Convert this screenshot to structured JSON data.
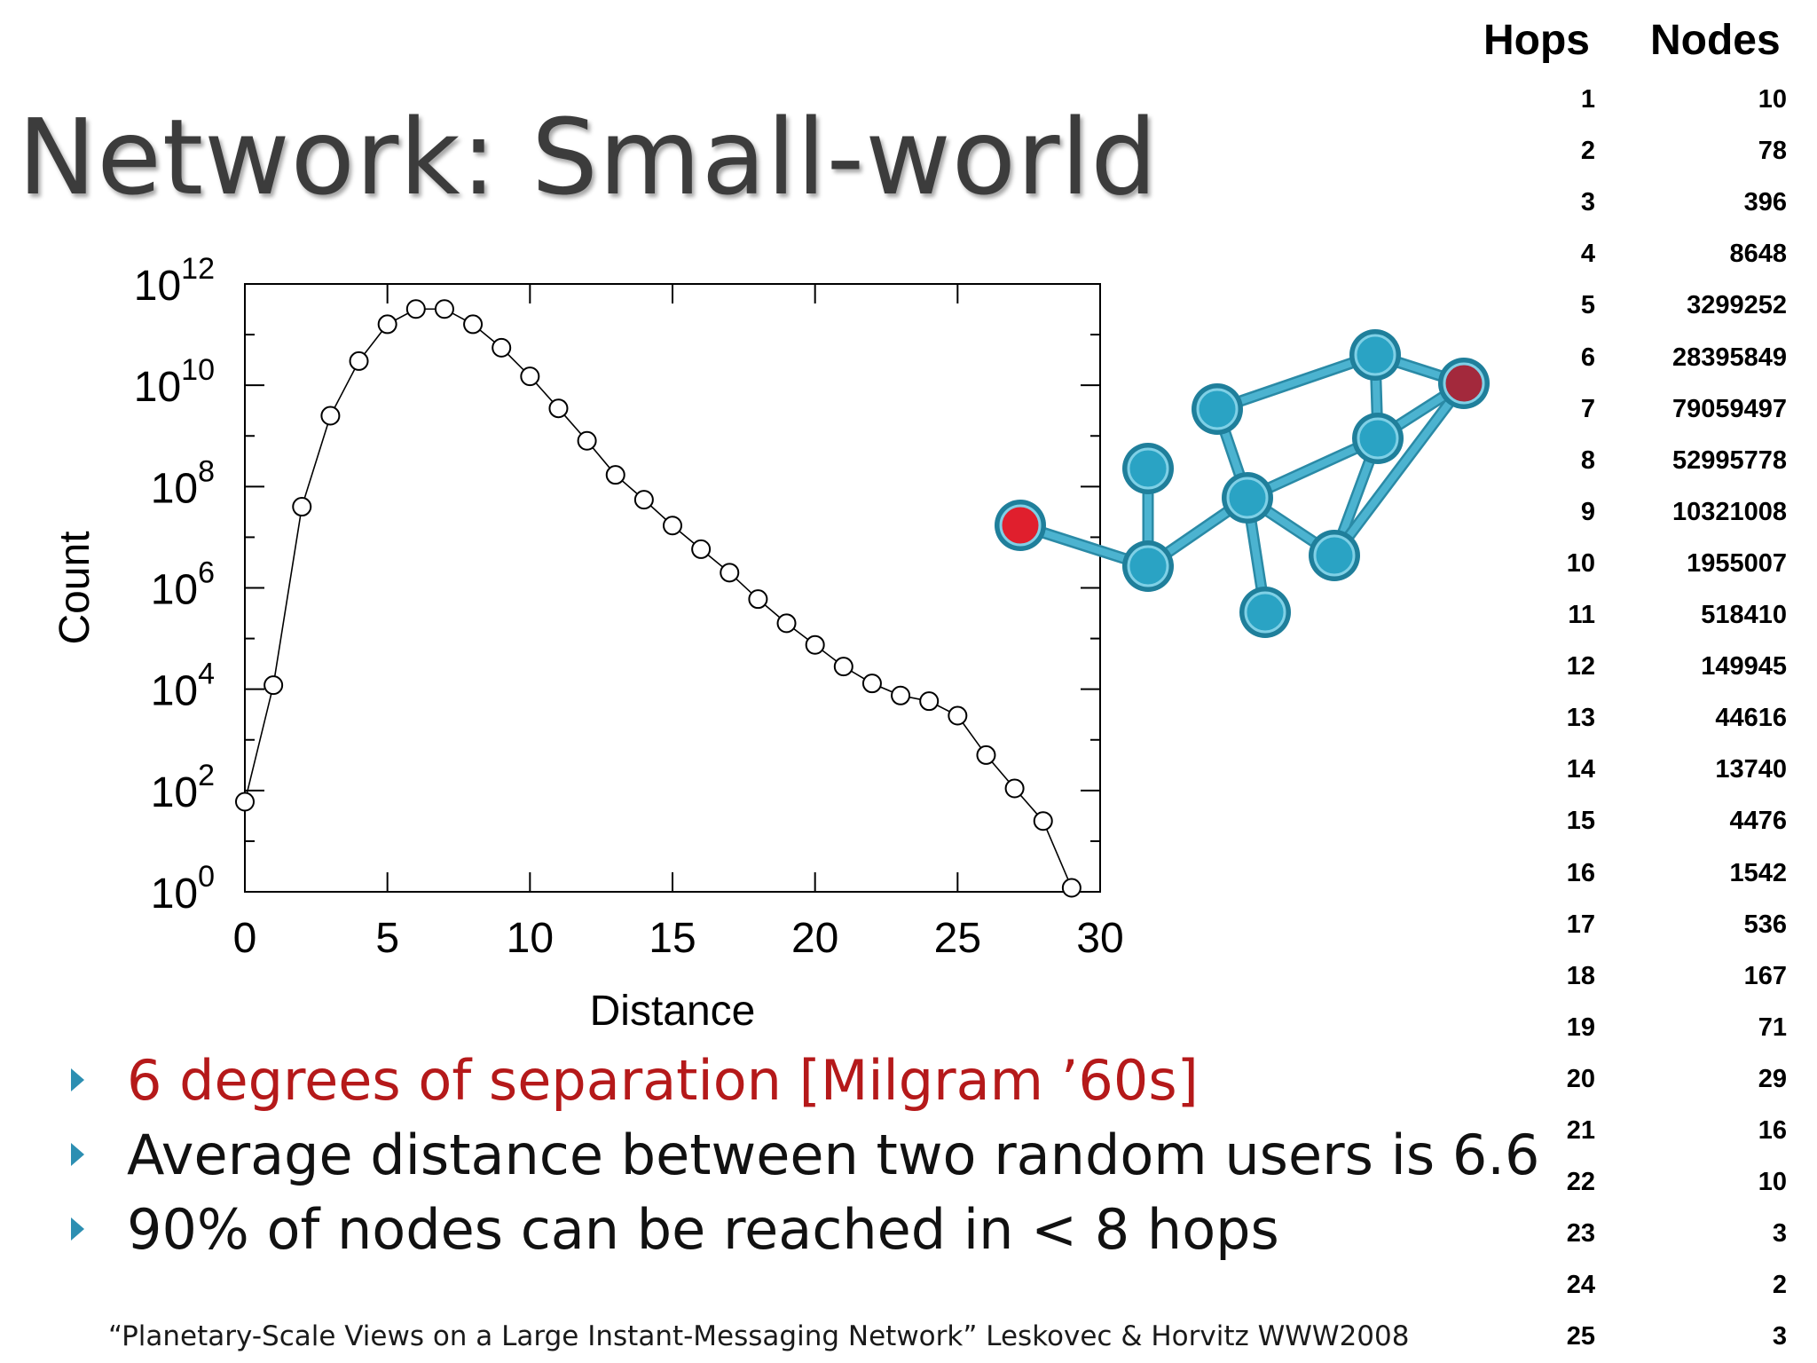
{
  "slide": {
    "title": "Network: Small-world",
    "bullets": [
      {
        "text": "6 degrees of separation [Milgram ’60s]",
        "color": "#b5191a"
      },
      {
        "text": "Average distance between two random users is 6.6",
        "color": "#111111"
      },
      {
        "text": "90% of nodes can be reached in < 8 hops",
        "color": "#111111"
      }
    ],
    "bullet_marker_color": "#2d8fb2",
    "citation": "“Planetary-Scale Views on a Large Instant-Messaging Network” Leskovec & Horvitz WWW2008"
  },
  "table": {
    "headers": {
      "hops": "Hops",
      "nodes": "Nodes"
    },
    "rows": [
      {
        "hops": "1",
        "nodes": "10"
      },
      {
        "hops": "2",
        "nodes": "78"
      },
      {
        "hops": "3",
        "nodes": "396"
      },
      {
        "hops": "4",
        "nodes": "8648"
      },
      {
        "hops": "5",
        "nodes": "3299252"
      },
      {
        "hops": "6",
        "nodes": "28395849"
      },
      {
        "hops": "7",
        "nodes": "79059497"
      },
      {
        "hops": "8",
        "nodes": "52995778"
      },
      {
        "hops": "9",
        "nodes": "10321008"
      },
      {
        "hops": "10",
        "nodes": "1955007"
      },
      {
        "hops": "11",
        "nodes": "518410"
      },
      {
        "hops": "12",
        "nodes": "149945"
      },
      {
        "hops": "13",
        "nodes": "44616"
      },
      {
        "hops": "14",
        "nodes": "13740"
      },
      {
        "hops": "15",
        "nodes": "4476"
      },
      {
        "hops": "16",
        "nodes": "1542"
      },
      {
        "hops": "17",
        "nodes": "536"
      },
      {
        "hops": "18",
        "nodes": "167"
      },
      {
        "hops": "19",
        "nodes": "71"
      },
      {
        "hops": "20",
        "nodes": "29"
      },
      {
        "hops": "21",
        "nodes": "16"
      },
      {
        "hops": "22",
        "nodes": "10"
      },
      {
        "hops": "23",
        "nodes": "3"
      },
      {
        "hops": "24",
        "nodes": "2"
      },
      {
        "hops": "25",
        "nodes": "3"
      }
    ]
  },
  "network_colors": {
    "node": "#2aa3c4",
    "edge": "#4cb3d0",
    "start": "#e01f2d",
    "target": "#a3293c"
  },
  "chart_data": {
    "type": "line",
    "xlabel": "Distance",
    "ylabel": "Count",
    "y_scale": "log10",
    "xlim": [
      0,
      30
    ],
    "ylim": [
      1,
      1000000000000
    ],
    "x_ticks": [
      "0",
      "5",
      "10",
      "15",
      "20",
      "25",
      "30"
    ],
    "y_ticks": [
      {
        "base": "10",
        "exp": "0"
      },
      {
        "base": "10",
        "exp": "2"
      },
      {
        "base": "10",
        "exp": "4"
      },
      {
        "base": "10",
        "exp": "6"
      },
      {
        "base": "10",
        "exp": "8"
      },
      {
        "base": "10",
        "exp": "10"
      },
      {
        "base": "10",
        "exp": "12"
      }
    ],
    "marker": "open-circle",
    "grid": false,
    "series": [
      {
        "x": [
          0,
          1,
          2,
          3,
          4,
          5,
          6,
          7,
          8,
          9,
          10,
          11,
          12,
          13,
          14,
          15,
          16,
          17,
          18,
          19,
          20,
          21,
          22,
          23,
          24,
          25,
          26,
          27,
          28,
          29
        ],
        "y": [
          60,
          12000,
          40000000,
          2500000000,
          30000000000,
          160000000000,
          320000000000,
          320000000000,
          160000000000,
          55000000000,
          15000000000,
          3500000000,
          800000000,
          170000000,
          55000000,
          17000000,
          5800000,
          2000000,
          600000,
          200000,
          75000,
          28000,
          13000,
          7500,
          5800,
          3000,
          500,
          110,
          25,
          1.2
        ]
      }
    ]
  }
}
